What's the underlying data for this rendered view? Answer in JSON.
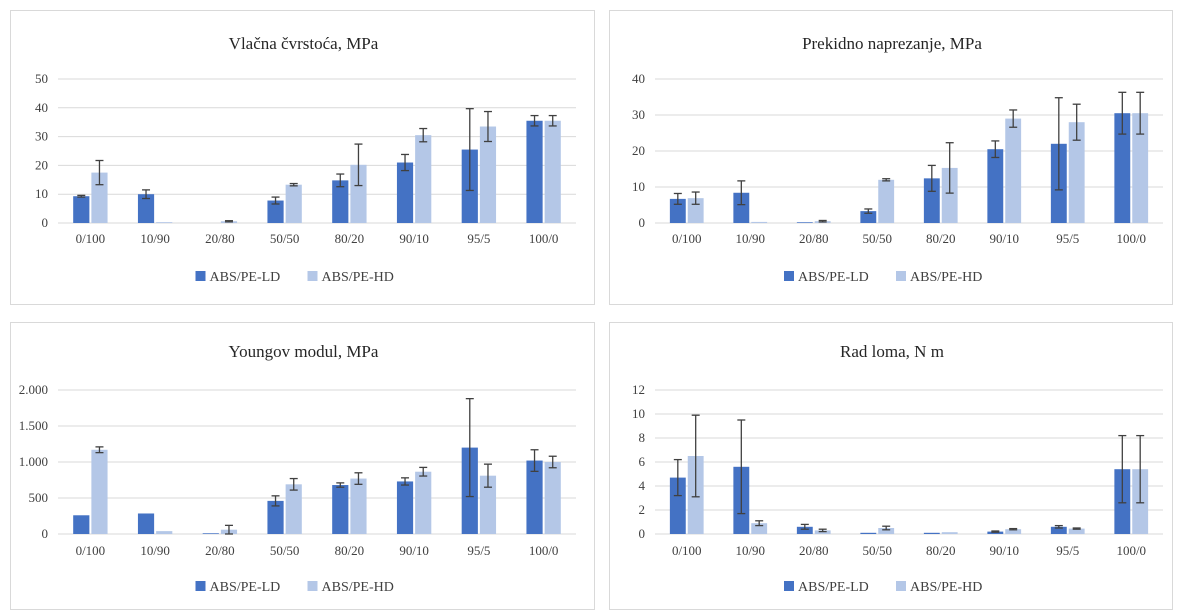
{
  "colors": {
    "series_1": "#4472c4",
    "series_2": "#b4c7e7",
    "grid": "#d9d9d9",
    "error_bar": "#404040"
  },
  "chart_data": [
    {
      "type": "bar",
      "title": "Vlačna čvrstoća, MPa",
      "categories": [
        "0/100",
        "10/90",
        "20/80",
        "50/50",
        "80/20",
        "90/10",
        "95/5",
        "100/0"
      ],
      "ylim": [
        0,
        50
      ],
      "yticks": [
        0,
        10,
        20,
        30,
        40,
        50
      ],
      "ytick_labels": [
        "0",
        "10",
        "20",
        "30",
        "40",
        "50"
      ],
      "grid": true,
      "legend_position": "bottom",
      "series": [
        {
          "name": "ABS/PE-LD",
          "color": "#4472c4",
          "values": [
            9.3,
            10,
            0,
            7.8,
            14.8,
            21,
            25.5,
            35.5
          ],
          "errors": [
            0.3,
            1.5,
            0,
            1.2,
            2.2,
            2.8,
            14.2,
            1.8
          ]
        },
        {
          "name": "ABS/PE-HD",
          "color": "#b4c7e7",
          "values": [
            17.5,
            0.3,
            0.6,
            13.3,
            20.2,
            30.5,
            33.5,
            35.5
          ],
          "errors": [
            4.2,
            0,
            0.2,
            0.4,
            7.2,
            2.3,
            5.2,
            1.8
          ]
        }
      ]
    },
    {
      "type": "bar",
      "title": "Prekidno naprezanje, MPa",
      "categories": [
        "0/100",
        "10/90",
        "20/80",
        "50/50",
        "80/20",
        "90/10",
        "95/5",
        "100/0"
      ],
      "ylim": [
        0,
        40
      ],
      "yticks": [
        0,
        10,
        20,
        30,
        40
      ],
      "ytick_labels": [
        "0",
        "10",
        "20",
        "30",
        "40"
      ],
      "grid": true,
      "legend_position": "bottom",
      "series": [
        {
          "name": "ABS/PE-LD",
          "color": "#4472c4",
          "values": [
            6.7,
            8.4,
            0.2,
            3.3,
            12.4,
            20.5,
            22,
            30.5
          ],
          "errors": [
            1.5,
            3.3,
            0,
            0.6,
            3.6,
            2.3,
            12.8,
            5.8
          ]
        },
        {
          "name": "ABS/PE-HD",
          "color": "#b4c7e7",
          "values": [
            6.9,
            0.3,
            0.5,
            12,
            15.3,
            29,
            28,
            30.5
          ],
          "errors": [
            1.7,
            0,
            0.2,
            0.3,
            7,
            2.4,
            5,
            5.8
          ]
        }
      ]
    },
    {
      "type": "bar",
      "title": "Youngov modul, MPa",
      "categories": [
        "0/100",
        "10/90",
        "20/80",
        "50/50",
        "80/20",
        "90/10",
        "95/5",
        "100/0"
      ],
      "ylim": [
        0,
        2000
      ],
      "yticks": [
        0,
        500,
        1000,
        1500,
        2000
      ],
      "ytick_labels": [
        "0",
        "500",
        "1.000",
        "1.500",
        "2.000"
      ],
      "grid": true,
      "legend_position": "bottom",
      "series": [
        {
          "name": "ABS/PE-LD",
          "color": "#4472c4",
          "values": [
            260,
            285,
            10,
            460,
            680,
            730,
            1200,
            1020
          ],
          "errors": [
            0,
            0,
            0,
            70,
            30,
            50,
            680,
            150
          ]
        },
        {
          "name": "ABS/PE-HD",
          "color": "#b4c7e7",
          "values": [
            1170,
            40,
            60,
            690,
            770,
            865,
            810,
            1000
          ],
          "errors": [
            40,
            0,
            60,
            80,
            80,
            60,
            160,
            80
          ]
        }
      ]
    },
    {
      "type": "bar",
      "title": "Rad loma, N m",
      "categories": [
        "0/100",
        "10/90",
        "20/80",
        "50/50",
        "80/20",
        "90/10",
        "95/5",
        "100/0"
      ],
      "ylim": [
        0,
        12
      ],
      "yticks": [
        0,
        2,
        4,
        6,
        8,
        10,
        12
      ],
      "ytick_labels": [
        "0",
        "2",
        "4",
        "6",
        "8",
        "10",
        "12"
      ],
      "grid": true,
      "legend_position": "bottom",
      "series": [
        {
          "name": "ABS/PE-LD",
          "color": "#4472c4",
          "values": [
            4.7,
            5.6,
            0.6,
            0.1,
            0.1,
            0.2,
            0.6,
            5.4
          ],
          "errors": [
            1.5,
            3.9,
            0.2,
            0,
            0,
            0.05,
            0.1,
            2.8
          ]
        },
        {
          "name": "ABS/PE-HD",
          "color": "#b4c7e7",
          "values": [
            6.5,
            0.9,
            0.3,
            0.5,
            0.15,
            0.4,
            0.45,
            5.4
          ],
          "errors": [
            3.4,
            0.2,
            0.1,
            0.15,
            0,
            0.05,
            0.05,
            2.8
          ]
        }
      ]
    }
  ]
}
